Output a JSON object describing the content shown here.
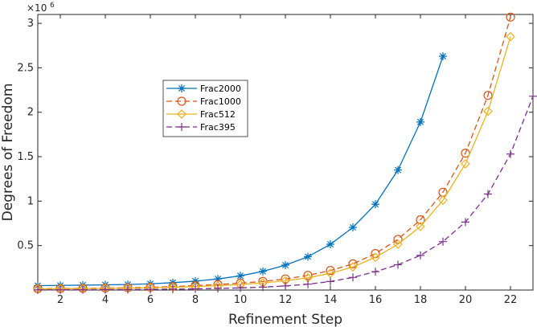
{
  "chart_data": {
    "type": "line",
    "title": "",
    "xlabel": "Refinement Step",
    "ylabel": "Degrees of Freedom",
    "y_exponent_base": "10",
    "y_exponent_power": "6",
    "xlim": [
      1,
      23
    ],
    "ylim": [
      0,
      3.1
    ],
    "y_display_scale": 1000000,
    "xticks": [
      2,
      4,
      6,
      8,
      10,
      12,
      14,
      16,
      18,
      20,
      22
    ],
    "yticks": [
      0.5,
      1,
      1.5,
      2,
      2.5,
      3
    ],
    "grid": false,
    "legend_position": "upper-middle-left",
    "series": [
      {
        "name": "Frac2000",
        "color": "#0072BD",
        "line_style": "solid",
        "marker": "asterisk",
        "x": [
          1,
          2,
          3,
          4,
          5,
          6,
          7,
          8,
          9,
          10,
          11,
          12,
          13,
          14,
          15,
          16,
          17,
          18,
          19
        ],
        "values": [
          50000,
          52000,
          55000,
          58000,
          62000,
          70000,
          83000,
          100000,
          125000,
          160000,
          210000,
          280000,
          375000,
          515000,
          705000,
          965000,
          1350000,
          1890000,
          2630000
        ]
      },
      {
        "name": "Frac1000",
        "color": "#D95319",
        "line_style": "dashed",
        "marker": "circle",
        "x": [
          1,
          2,
          3,
          4,
          5,
          6,
          7,
          8,
          9,
          10,
          11,
          12,
          13,
          14,
          15,
          16,
          17,
          18,
          19,
          20,
          21,
          22
        ],
        "values": [
          15000,
          17000,
          19000,
          22000,
          26000,
          31000,
          39000,
          50000,
          62000,
          78000,
          97000,
          125000,
          165000,
          220000,
          295000,
          410000,
          570000,
          790000,
          1100000,
          1540000,
          2190000,
          3070000
        ]
      },
      {
        "name": "Frac512",
        "color": "#EDB120",
        "line_style": "solid",
        "marker": "diamond",
        "x": [
          1,
          2,
          3,
          4,
          5,
          6,
          7,
          8,
          9,
          10,
          11,
          12,
          13,
          14,
          15,
          16,
          17,
          18,
          19,
          20,
          21,
          22
        ],
        "values": [
          12000,
          14000,
          16000,
          18000,
          21000,
          25000,
          31000,
          39000,
          49000,
          62000,
          80000,
          104000,
          138000,
          188000,
          260000,
          368000,
          515000,
          715000,
          1010000,
          1420000,
          2010000,
          2850000
        ]
      },
      {
        "name": "Frac395",
        "color": "#7E2F8E",
        "line_style": "dashed",
        "marker": "plus",
        "x": [
          1,
          2,
          3,
          4,
          5,
          6,
          7,
          8,
          9,
          10,
          11,
          12,
          13,
          14,
          15,
          16,
          17,
          18,
          19,
          20,
          21,
          22,
          23
        ],
        "values": [
          2000,
          3000,
          4000,
          5000,
          6000,
          8000,
          10000,
          13000,
          18000,
          24000,
          33000,
          46000,
          66000,
          96000,
          142000,
          207000,
          285000,
          390000,
          545000,
          765000,
          1080000,
          1530000,
          2180000
        ]
      }
    ]
  }
}
